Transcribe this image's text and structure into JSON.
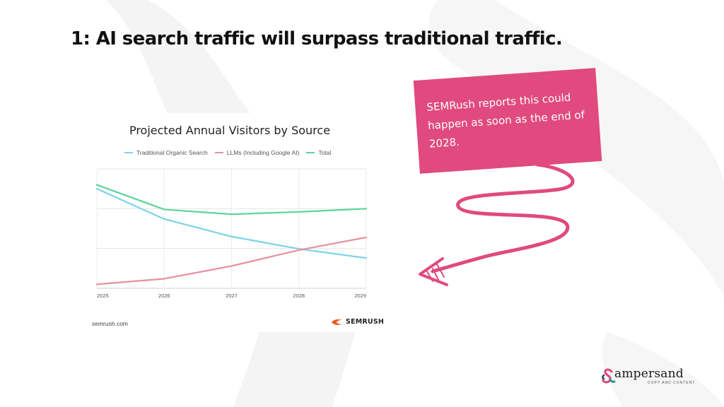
{
  "slide": {
    "title": "1: AI search traffic will surpass traditional traffic."
  },
  "callout": {
    "text": "SEMRush reports this could happen as soon as the end of 2028.",
    "color": "#e04a7e"
  },
  "chart_card": {
    "source": "semrush.com",
    "brand": "SEMRUSH",
    "brand_color": "#f15a22"
  },
  "chart_data": {
    "type": "line",
    "title": "Projected Annual Visitors by Source",
    "x": [
      "2025",
      "2026",
      "2027",
      "2028",
      "2029"
    ],
    "ylim": [
      0,
      3
    ],
    "grid": true,
    "legend_position": "top",
    "xlabel": "",
    "ylabel": "",
    "series": [
      {
        "name": "Traditional Organic Search",
        "color": "#7dd3e8",
        "values": [
          2.5,
          1.74,
          1.3,
          0.99,
          0.76
        ]
      },
      {
        "name": "LLMs (Including Google AI)",
        "color": "#e8909b",
        "values": [
          0.1,
          0.24,
          0.56,
          0.96,
          1.28
        ]
      },
      {
        "name": "Total",
        "color": "#5fd39d",
        "values": [
          2.6,
          1.98,
          1.86,
          1.92,
          2.0
        ]
      }
    ]
  },
  "logo": {
    "wordmark": "ampersand",
    "tagline": "COPY AND CONTENT"
  }
}
